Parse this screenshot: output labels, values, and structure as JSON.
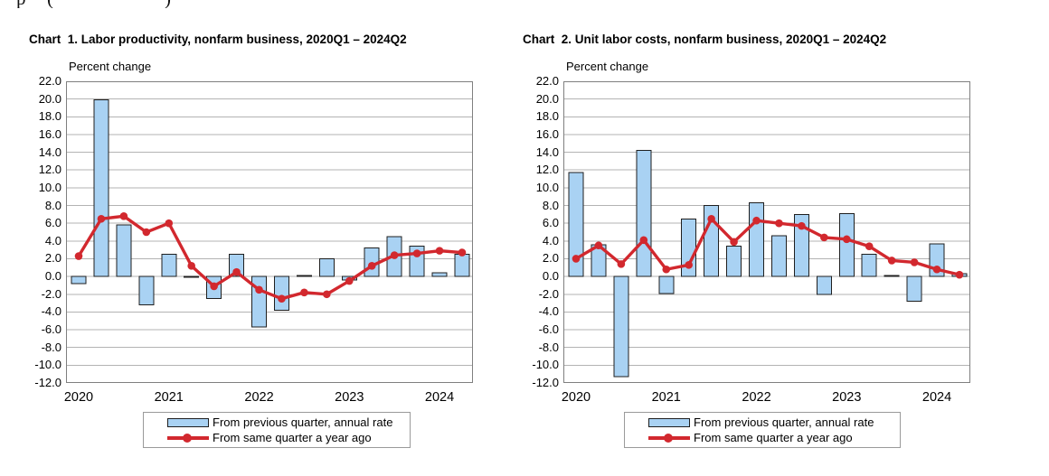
{
  "page": {
    "background": "#ffffff",
    "top_edge_fragments": [
      "p",
      "(",
      ")"
    ]
  },
  "colors": {
    "bar_fill": "#A9D2F3",
    "bar_border": "#1f1f1f",
    "line_red": "#D2282E",
    "gridline": "#b3b3b3",
    "plot_border": "#7f7f7f",
    "legend_border": "#9a9a9a",
    "text": "#000000"
  },
  "chart_data": [
    {
      "type": "bar+line",
      "title": "Chart  1. Labor productivity, nonfarm business, 2020Q1 – 2024Q2",
      "y_axis_label": "Percent change",
      "ylim": [
        -12.0,
        22.0
      ],
      "ytick_interval": 2.0,
      "ytick_labels": [
        "22.0",
        "20.0",
        "18.0",
        "16.0",
        "14.0",
        "12.0",
        "10.0",
        "8.0",
        "6.0",
        "4.0",
        "2.0",
        "0.0",
        "-2.0",
        "-4.0",
        "-6.0",
        "-8.0",
        "-10.0",
        "-12.0"
      ],
      "xtick_labels": [
        "2020",
        "2021",
        "2022",
        "2023",
        "2024"
      ],
      "x": [
        "2020Q1",
        "2020Q2",
        "2020Q3",
        "2020Q4",
        "2021Q1",
        "2021Q2",
        "2021Q3",
        "2021Q4",
        "2022Q1",
        "2022Q2",
        "2022Q3",
        "2022Q4",
        "2023Q1",
        "2023Q2",
        "2023Q3",
        "2023Q4",
        "2024Q1",
        "2024Q2"
      ],
      "grid": true,
      "legend_position": "bottom",
      "series": [
        {
          "name": "From previous quarter, annual rate",
          "type": "bar",
          "color": "#A9D2F3",
          "values": [
            -0.8,
            19.9,
            5.8,
            -3.2,
            2.5,
            -0.1,
            -2.5,
            2.5,
            -5.7,
            -3.8,
            0.1,
            2.0,
            -0.4,
            3.2,
            4.5,
            3.4,
            0.4,
            2.5
          ]
        },
        {
          "name": "From same quarter a year ago",
          "type": "line",
          "color": "#D2282E",
          "values": [
            2.3,
            6.5,
            6.8,
            5.0,
            6.0,
            1.2,
            -1.1,
            0.5,
            -1.5,
            -2.5,
            -1.8,
            -2.0,
            -0.5,
            1.2,
            2.4,
            2.6,
            2.9,
            2.7
          ]
        }
      ]
    },
    {
      "type": "bar+line",
      "title": "Chart  2. Unit labor costs, nonfarm business, 2020Q1 – 2024Q2",
      "y_axis_label": "Percent change",
      "ylim": [
        -12.0,
        22.0
      ],
      "ytick_interval": 2.0,
      "ytick_labels": [
        "22.0",
        "20.0",
        "18.0",
        "16.0",
        "14.0",
        "12.0",
        "10.0",
        "8.0",
        "6.0",
        "4.0",
        "2.0",
        "0.0",
        "-2.0",
        "-4.0",
        "-6.0",
        "-8.0",
        "-10.0",
        "-12.0"
      ],
      "xtick_labels": [
        "2020",
        "2021",
        "2022",
        "2023",
        "2024"
      ],
      "x": [
        "2020Q1",
        "2020Q2",
        "2020Q3",
        "2020Q4",
        "2021Q1",
        "2021Q2",
        "2021Q3",
        "2021Q4",
        "2022Q1",
        "2022Q2",
        "2022Q3",
        "2022Q4",
        "2023Q1",
        "2023Q2",
        "2023Q3",
        "2023Q4",
        "2024Q1",
        "2024Q2"
      ],
      "grid": true,
      "legend_position": "bottom",
      "series": [
        {
          "name": "From previous quarter, annual rate",
          "type": "bar",
          "color": "#A9D2F3",
          "values": [
            11.7,
            3.6,
            -11.3,
            14.2,
            -1.9,
            6.5,
            8.0,
            3.4,
            8.3,
            4.6,
            7.0,
            -2.0,
            7.1,
            2.5,
            0.1,
            -2.8,
            3.7,
            0.3
          ]
        },
        {
          "name": "From same quarter a year ago",
          "type": "line",
          "color": "#D2282E",
          "values": [
            2.0,
            3.5,
            1.4,
            4.1,
            0.8,
            1.3,
            6.5,
            3.9,
            6.3,
            6.0,
            5.7,
            4.4,
            4.2,
            3.4,
            1.8,
            1.6,
            0.8,
            0.2
          ]
        }
      ]
    }
  ]
}
